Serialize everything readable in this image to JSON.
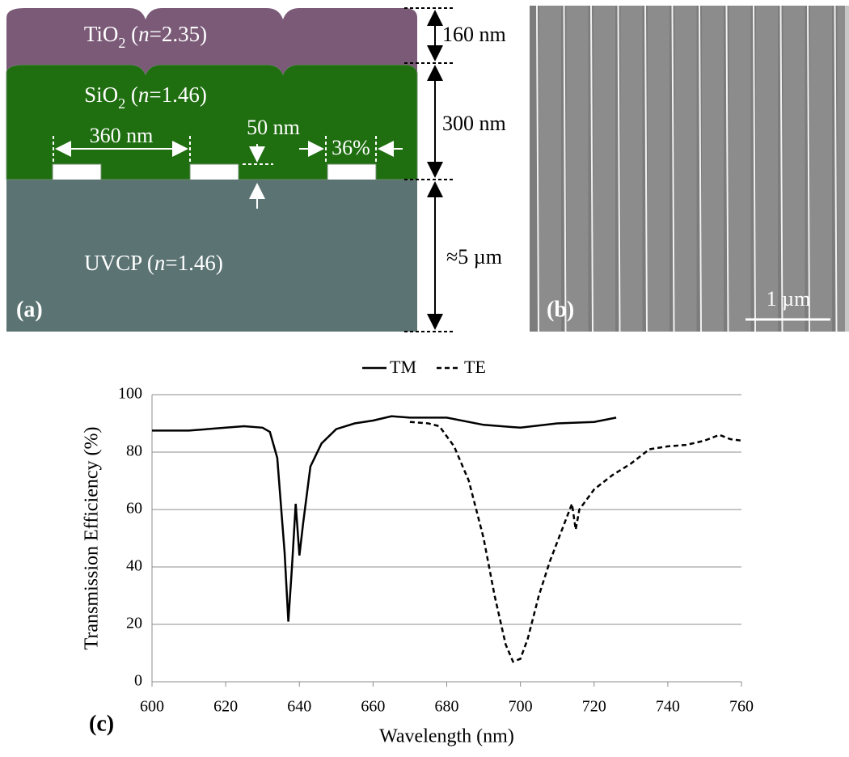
{
  "panels": {
    "a": {
      "label": "(a)",
      "layers": [
        {
          "parts": [
            {
              "text": "TiO"
            },
            {
              "text": "2",
              "style": "sub"
            },
            {
              "text": " ("
            },
            {
              "text": "n",
              "style": "italic"
            },
            {
              "text": "=2.35)"
            }
          ]
        },
        {
          "parts": [
            {
              "text": "SiO"
            },
            {
              "text": "2",
              "style": "sub"
            },
            {
              "text": " ("
            },
            {
              "text": "n",
              "style": "italic"
            },
            {
              "text": "=1.46)"
            }
          ]
        },
        {
          "parts": [
            {
              "text": "UVCP ("
            },
            {
              "text": "n",
              "style": "italic"
            },
            {
              "text": "=1.46)"
            }
          ]
        }
      ],
      "thicknesses": [
        "160 nm",
        "300 nm",
        "≈5 µm"
      ],
      "period": "360 nm",
      "depth": "50 nm",
      "fill_factor": "36%"
    },
    "b": {
      "label": "(b)",
      "scale_bar": "1 µm"
    }
  },
  "chart_data": {
    "type": "line",
    "panel_label": "(c)",
    "xlabel": "Wavelength (nm)",
    "ylabel": "Transmission Efficiency (%)",
    "xlim": [
      600,
      760
    ],
    "xticks": [
      600,
      620,
      640,
      660,
      680,
      700,
      720,
      740,
      760
    ],
    "ylim": [
      0,
      100
    ],
    "yticks": [
      0,
      20,
      40,
      60,
      80,
      100
    ],
    "grid": true,
    "legend": "top",
    "series": [
      {
        "name": "TM",
        "color": "#000000",
        "dash": false,
        "x": [
          600,
          610,
          620,
          625,
          630,
          632,
          634,
          636,
          637,
          638,
          639,
          640,
          641,
          643,
          646,
          650,
          655,
          660,
          665,
          670,
          680,
          690,
          700,
          710,
          720,
          726
        ],
        "values": [
          87.5,
          87.5,
          88.5,
          89,
          88.5,
          87,
          78,
          45,
          21,
          40,
          62,
          44,
          55,
          75,
          83,
          88,
          90,
          91,
          92.5,
          92,
          92,
          89.5,
          88.5,
          90,
          90.5,
          92
        ]
      },
      {
        "name": "TE",
        "color": "#000000",
        "dash": true,
        "x": [
          670,
          675,
          678,
          682,
          686,
          690,
          693,
          696,
          698,
          700,
          702,
          705,
          708,
          711,
          714,
          715,
          716,
          720,
          725,
          730,
          735,
          740,
          745,
          750,
          754,
          757,
          760
        ],
        "values": [
          90.5,
          90,
          89,
          82,
          70,
          50,
          30,
          13,
          7,
          8,
          15,
          30,
          42,
          52,
          62,
          53,
          60,
          67,
          72,
          76,
          81,
          82,
          82.5,
          84,
          86,
          84.5,
          84
        ]
      }
    ]
  }
}
